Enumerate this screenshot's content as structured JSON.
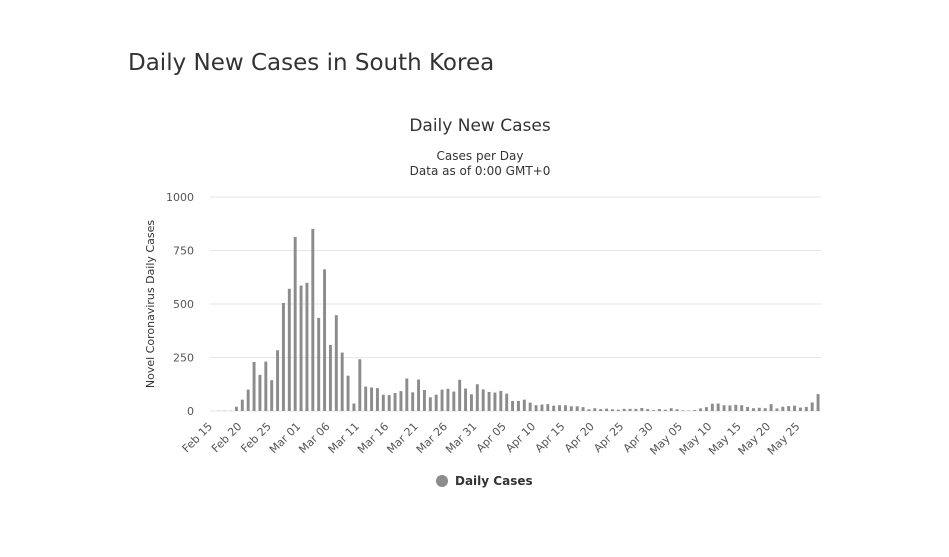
{
  "header": {
    "title": "Daily New Cases in South Korea"
  },
  "chart_data": {
    "type": "bar",
    "title": "Daily New Cases",
    "subtitle": [
      "Cases per Day",
      "Data as of 0:00 GMT+0"
    ],
    "y_label": "Novel Coronavirus Daily Cases",
    "categories": [
      "Feb 15",
      null,
      null,
      null,
      null,
      "Feb 20",
      null,
      null,
      null,
      null,
      "Feb 25",
      null,
      null,
      null,
      null,
      "Mar 01",
      null,
      null,
      null,
      null,
      "Mar 06",
      null,
      null,
      null,
      null,
      "Mar 11",
      null,
      null,
      null,
      null,
      "Mar 16",
      null,
      null,
      null,
      null,
      "Mar 21",
      null,
      null,
      null,
      null,
      "Mar 26",
      null,
      null,
      null,
      null,
      "Mar 31",
      null,
      null,
      null,
      null,
      "Apr 05",
      null,
      null,
      null,
      null,
      "Apr 10",
      null,
      null,
      null,
      null,
      "Apr 15",
      null,
      null,
      null,
      null,
      "Apr 20",
      null,
      null,
      null,
      null,
      "Apr 25",
      null,
      null,
      null,
      null,
      "Apr 30",
      null,
      null,
      null,
      null,
      "May 05",
      null,
      null,
      null,
      null,
      "May 10",
      null,
      null,
      null,
      null,
      "May 15",
      null,
      null,
      null,
      null,
      "May 20",
      null,
      null,
      null,
      null,
      "May 25",
      null,
      null,
      null
    ],
    "series": [
      {
        "name": "Daily Cases",
        "color": "#8c8c8c",
        "values": [
          0,
          1,
          1,
          1,
          20,
          53,
          100,
          229,
          169,
          231,
          144,
          284,
          505,
          571,
          813,
          586,
          599,
          851,
          435,
          662,
          309,
          448,
          273,
          165,
          35,
          242,
          114,
          110,
          107,
          76,
          74,
          84,
          93,
          152,
          87,
          147,
          98,
          64,
          76,
          100,
          104,
          91,
          146,
          105,
          78,
          125,
          101,
          89,
          86,
          94,
          81,
          47,
          47,
          53,
          39,
          27,
          30,
          32,
          25,
          27,
          27,
          22,
          22,
          18,
          8,
          13,
          9,
          11,
          8,
          6,
          10,
          10,
          10,
          14,
          9,
          4,
          9,
          6,
          13,
          8,
          3,
          2,
          4,
          12,
          18,
          34,
          35,
          27,
          26,
          29,
          27,
          19,
          13,
          15,
          13,
          32,
          12,
          20,
          23,
          25,
          16,
          19,
          40,
          79
        ]
      }
    ],
    "ylim": [
      0,
      1000
    ],
    "yticks": [
      0,
      250,
      500,
      750,
      1000
    ],
    "grid": true
  }
}
